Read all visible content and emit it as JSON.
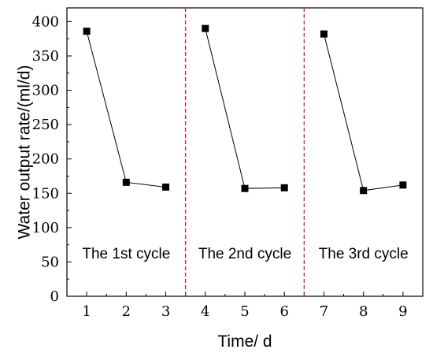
{
  "chart_data": {
    "type": "line",
    "xlabel": "Time/ d",
    "ylabel": "Water output rate/(ml/d)",
    "xlim": [
      0.5,
      9.5
    ],
    "ylim": [
      0,
      420
    ],
    "x_ticks": [
      1,
      2,
      3,
      4,
      5,
      6,
      7,
      8,
      9
    ],
    "y_ticks": [
      0,
      50,
      100,
      150,
      200,
      250,
      300,
      350,
      400
    ],
    "grid": false,
    "legend": "none",
    "line_color": "#000000",
    "marker": "square",
    "divider_color": "#e02020",
    "dividers_x": [
      3.5,
      6.5
    ],
    "series": [
      {
        "x": [
          1,
          2,
          3
        ],
        "values": [
          386,
          166,
          159
        ]
      },
      {
        "x": [
          4,
          5,
          6
        ],
        "values": [
          390,
          157,
          158
        ]
      },
      {
        "x": [
          7,
          8,
          9
        ],
        "values": [
          382,
          154,
          162
        ]
      }
    ],
    "annotations": [
      {
        "text": "The 1st cycle",
        "x": 2,
        "y": 55
      },
      {
        "text": "The 2nd cycle",
        "x": 5,
        "y": 55
      },
      {
        "text": "The 3rd cycle",
        "x": 8,
        "y": 55
      }
    ]
  }
}
